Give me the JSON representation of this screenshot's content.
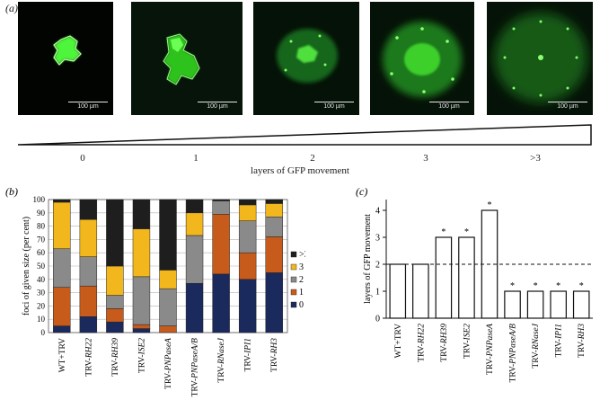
{
  "panel_labels": {
    "a": "(a)",
    "b": "(b)",
    "c": "(c)"
  },
  "micrographs": [
    {
      "scale": "100 µm"
    },
    {
      "scale": "100 µm"
    },
    {
      "scale": "100 µm"
    },
    {
      "scale": "100 µm"
    },
    {
      "scale": "100 µm"
    }
  ],
  "wedge": {
    "ticks": [
      "0",
      "1",
      "2",
      "3",
      ">3"
    ],
    "title": "layers of GFP movement"
  },
  "chart_data": [
    {
      "type": "bar",
      "stacked": true,
      "ylabel": "foci of given size (per cent)",
      "ylim": [
        0,
        100
      ],
      "yticks": [
        0,
        10,
        20,
        30,
        40,
        50,
        60,
        70,
        80,
        90,
        100
      ],
      "grid": true,
      "categories": [
        "WT+TRV",
        "TRV-RH22",
        "TRV-RH39",
        "TRV-ISE2",
        "TRV-PNPaseA",
        "TRV-PNPaseA/B",
        "TRV-RNaseJ",
        "TRV-IPI1",
        "TRV-RH3"
      ],
      "category_prefix": "TRV-",
      "series": [
        {
          "name": "0",
          "color": "#1b2a5c",
          "values": [
            5,
            12,
            8,
            3,
            0,
            37,
            44,
            40,
            45
          ]
        },
        {
          "name": "1",
          "color": "#c65b1c",
          "values": [
            29,
            23,
            10,
            3,
            5,
            0,
            45,
            20,
            27
          ]
        },
        {
          "name": "2",
          "color": "#8a8a8a",
          "values": [
            29,
            22,
            10,
            36,
            28,
            36,
            10,
            24,
            15
          ]
        },
        {
          "name": "3",
          "color": "#f2b71c",
          "values": [
            35,
            28,
            22,
            36,
            14,
            17,
            0,
            12,
            10
          ]
        },
        {
          "name": ">3",
          "color": "#1e1e1e",
          "values": [
            2,
            15,
            50,
            22,
            53,
            10,
            1,
            4,
            3
          ]
        }
      ],
      "legend": "right",
      "legend_order": [
        ">3",
        "3",
        "2",
        "1",
        "0"
      ]
    },
    {
      "type": "bar",
      "ylabel": "layers of GFP movement",
      "ylim": [
        0,
        4.4
      ],
      "yticks": [
        0,
        1,
        2,
        3,
        4
      ],
      "categories": [
        "WT+TRV",
        "TRV-RH22",
        "TRV-RH39",
        "TRV-ISE2",
        "TRV-PNPaseA",
        "TRV-PNPaseA/B",
        "TRV-RNaseJ",
        "TRV-IPI1",
        "TRV-RH3"
      ],
      "category_prefix": "TRV-",
      "values": [
        2,
        2,
        3,
        3,
        4,
        1,
        1,
        1,
        1
      ],
      "significance": [
        "",
        "",
        "*",
        "*",
        "*",
        "*",
        "*",
        "*",
        "*"
      ],
      "reference_line": 2
    }
  ]
}
